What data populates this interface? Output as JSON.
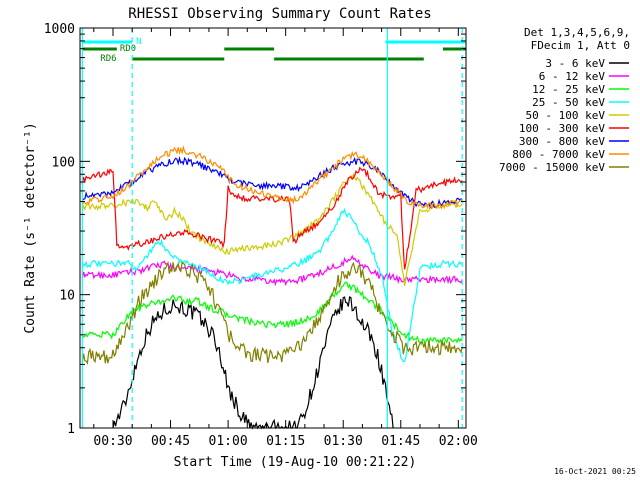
{
  "chart_data": {
    "type": "line",
    "title": "RHESSI Observing Summary Count Rates",
    "xlabel": "Start Time (19-Aug-10 00:21:22)",
    "ylabel": "Count Rate (s⁻¹ detector⁻¹)",
    "y_scale": "log",
    "ylim": [
      1,
      1000
    ],
    "xlim_minutes": [
      21.4,
      122
    ],
    "x_ticks": [
      {
        "minute": 30,
        "label": "00:30"
      },
      {
        "minute": 45,
        "label": "00:45"
      },
      {
        "minute": 60,
        "label": "01:00"
      },
      {
        "minute": 75,
        "label": "01:15"
      },
      {
        "minute": 90,
        "label": "01:30"
      },
      {
        "minute": 105,
        "label": "01:45"
      },
      {
        "minute": 120,
        "label": "02:00"
      }
    ],
    "y_ticks": [
      {
        "value": 1,
        "label": "1"
      },
      {
        "value": 10,
        "label": "10"
      },
      {
        "value": 100,
        "label": "100"
      },
      {
        "value": 1000,
        "label": "1000"
      }
    ],
    "legend_header": [
      "Det 1,3,4,5,6,9,",
      "FDecim 1, Att 0"
    ],
    "legend_position": "right",
    "series": [
      {
        "name": "3 - 6 keV",
        "color": "#000000",
        "x": [
          30,
          33,
          36,
          38,
          40,
          42,
          44,
          46,
          48,
          50,
          52,
          54,
          56,
          58,
          60,
          63,
          66,
          70,
          74,
          78,
          81,
          83,
          85,
          87,
          89,
          91,
          93,
          95,
          97,
          99,
          101,
          103
        ],
        "y": [
          1,
          1.5,
          3,
          4.5,
          6,
          7,
          8,
          8.5,
          8,
          7.5,
          7,
          6,
          5,
          3.5,
          2,
          1.3,
          1,
          1,
          1,
          1,
          1.6,
          2.5,
          4,
          6,
          8,
          9,
          8,
          6,
          5,
          3.5,
          2,
          1
        ]
      },
      {
        "name": "6 - 12 keV",
        "color": "#ff00ff",
        "x": [
          22,
          30,
          36,
          40,
          43,
          46,
          49,
          52,
          55,
          58,
          60,
          63,
          67,
          71,
          75,
          79,
          82,
          85,
          88,
          91,
          93,
          95,
          97,
          99,
          101,
          103,
          105,
          108,
          112,
          115,
          118,
          121
        ],
        "y": [
          14,
          14,
          15,
          16,
          17,
          16,
          15.5,
          15.5,
          15,
          14.5,
          14,
          13,
          13,
          12.5,
          12.5,
          13,
          14,
          15,
          16.5,
          18,
          19,
          17,
          15,
          14,
          13.5,
          13.5,
          13,
          13,
          13,
          13,
          13,
          13
        ]
      },
      {
        "name": "12 - 25 keV",
        "color": "#00ff00",
        "x": [
          22,
          30,
          34,
          37,
          40,
          43,
          46,
          49,
          52,
          55,
          58,
          60,
          64,
          68,
          72,
          76,
          80,
          83,
          86,
          89,
          91,
          93,
          95,
          97,
          99,
          101,
          103,
          106,
          110,
          114,
          118,
          121
        ],
        "y": [
          5,
          5,
          7,
          8,
          8.5,
          9,
          9.5,
          9,
          9,
          8,
          7.5,
          7,
          6.5,
          6,
          6,
          6,
          6.5,
          7,
          9,
          11,
          12,
          11,
          10,
          9,
          8,
          7,
          6,
          5,
          4.5,
          4.5,
          4.5,
          4.5
        ]
      },
      {
        "name": "25 - 50 keV",
        "color": "#00ffff",
        "x": [
          22,
          30,
          32,
          34,
          36,
          38,
          40,
          42,
          44,
          46,
          48,
          50,
          52,
          54,
          56,
          58,
          60,
          64,
          68,
          72,
          76,
          80,
          84,
          86,
          88,
          90,
          92,
          94,
          96,
          98,
          100,
          103,
          106,
          110,
          115,
          121
        ],
        "y": [
          17,
          17,
          17.5,
          17,
          16,
          18,
          22,
          25,
          22,
          19,
          18,
          17,
          16,
          15,
          14,
          13,
          12.5,
          13,
          14,
          15,
          16,
          18,
          22,
          26,
          34,
          43,
          38,
          30,
          26,
          20,
          14,
          5,
          3,
          16,
          17,
          17
        ]
      },
      {
        "name": "50 - 100 keV",
        "color": "#cccc00",
        "x": [
          22,
          30,
          32,
          34,
          36,
          38,
          39,
          40,
          42,
          44,
          46,
          48,
          50,
          52,
          54,
          56,
          58,
          60,
          64,
          68,
          72,
          76,
          80,
          82,
          84,
          86,
          88,
          90,
          92,
          94,
          96,
          98,
          100,
          102,
          104,
          106,
          110,
          115,
          121
        ],
        "y": [
          45,
          47,
          48,
          49,
          50,
          48,
          42,
          52,
          45,
          36,
          42,
          38,
          30,
          27,
          25,
          23,
          22,
          21,
          22,
          23,
          24,
          26,
          30,
          34,
          38,
          45,
          55,
          68,
          80,
          72,
          60,
          48,
          38,
          32,
          28,
          12,
          42,
          47,
          48
        ]
      },
      {
        "name": "100 - 300 keV",
        "color": "#ff0000",
        "x": [
          22,
          26,
          29,
          30,
          31,
          33,
          35,
          37,
          39,
          41,
          43,
          45,
          47,
          49,
          51,
          53,
          55,
          57,
          59,
          60,
          62,
          65,
          68,
          71,
          74,
          76,
          77,
          79,
          81,
          83,
          85,
          87,
          89,
          91,
          93,
          95,
          97,
          99,
          101,
          103,
          105,
          106,
          109,
          112,
          115,
          118,
          121
        ],
        "y": [
          72,
          78,
          82,
          86,
          24,
          22,
          23,
          24,
          25,
          26,
          27,
          28,
          29,
          29,
          28,
          27,
          26,
          25,
          24,
          62,
          55,
          53,
          52,
          52,
          52,
          52,
          25,
          28,
          31,
          34,
          38,
          45,
          55,
          70,
          80,
          90,
          75,
          60,
          55,
          55,
          55,
          15,
          60,
          65,
          68,
          70,
          72
        ]
      },
      {
        "name": "300 - 800 keV",
        "color": "#0000ff",
        "x": [
          22,
          26,
          29,
          31,
          33,
          35,
          37,
          39,
          41,
          43,
          45,
          47,
          49,
          51,
          53,
          55,
          57,
          59,
          60,
          62,
          65,
          68,
          71,
          74,
          76,
          77,
          79,
          81,
          83,
          85,
          87,
          89,
          91,
          93,
          95,
          97,
          99,
          101,
          103,
          105,
          107,
          109,
          112,
          115,
          118,
          121
        ],
        "y": [
          54,
          56,
          58,
          62,
          65,
          70,
          78,
          84,
          90,
          95,
          100,
          101,
          100,
          97,
          93,
          88,
          83,
          78,
          74,
          70,
          68,
          66,
          65,
          65,
          65,
          62,
          65,
          70,
          76,
          82,
          88,
          94,
          98,
          100,
          98,
          92,
          85,
          75,
          65,
          58,
          52,
          48,
          47,
          48,
          50,
          52
        ]
      },
      {
        "name": "800 - 7000 keV",
        "color": "#ff8c00",
        "x": [
          22,
          26,
          29,
          31,
          33,
          35,
          37,
          39,
          41,
          43,
          45,
          47,
          49,
          51,
          53,
          55,
          57,
          59,
          60,
          62,
          65,
          68,
          71,
          74,
          76,
          77,
          79,
          81,
          83,
          85,
          87,
          89,
          91,
          93,
          95,
          97,
          99,
          101,
          103,
          105,
          107,
          109,
          112,
          115,
          118,
          121
        ],
        "y": [
          50,
          52,
          54,
          58,
          63,
          70,
          80,
          90,
          100,
          110,
          118,
          121,
          120,
          115,
          108,
          100,
          92,
          84,
          76,
          68,
          62,
          58,
          55,
          53,
          52,
          52,
          55,
          62,
          70,
          78,
          88,
          98,
          106,
          112,
          108,
          98,
          86,
          74,
          64,
          56,
          50,
          47,
          46,
          47,
          48,
          50
        ]
      },
      {
        "name": "7000 - 15000 keV",
        "color": "#808000",
        "x": [
          22,
          30,
          33,
          36,
          39,
          42,
          44,
          46,
          48,
          50,
          52,
          54,
          56,
          58,
          60,
          63,
          66,
          70,
          74,
          78,
          81,
          84,
          86,
          88,
          90,
          92,
          94,
          96,
          98,
          100,
          103,
          106,
          110,
          115,
          121
        ],
        "y": [
          3.5,
          3.5,
          5,
          8,
          11,
          14,
          15.5,
          16,
          15.5,
          15,
          14,
          12,
          10,
          7,
          5,
          4,
          3.5,
          3.5,
          3.5,
          4,
          5,
          7,
          9,
          12,
          14,
          16,
          15,
          13,
          10,
          7,
          5,
          4,
          4,
          4,
          4
        ]
      }
    ],
    "annotations": [
      {
        "label": "N",
        "color": "#00ffff"
      },
      {
        "label": "RD0",
        "color": "#008000"
      },
      {
        "label": "RD6",
        "color": "#008000"
      }
    ],
    "state_bars": [
      {
        "name": "N",
        "color": "#00ffff",
        "segments": [
          [
            22,
            35
          ],
          [
            101,
            122
          ]
        ]
      },
      {
        "name": "RD0",
        "color": "#008000",
        "segments": [
          [
            22,
            31
          ],
          [
            59,
            72
          ],
          [
            116,
            122
          ]
        ]
      },
      {
        "name": "RD6",
        "color": "#008000",
        "segments": [
          [
            35,
            59
          ],
          [
            72,
            111
          ]
        ]
      }
    ],
    "solid_vlines": [
      22,
      101.5
    ],
    "dashed_vlines": [
      35,
      121
    ]
  },
  "footer": {
    "timestamp": "16-Oct-2021 00:25"
  }
}
